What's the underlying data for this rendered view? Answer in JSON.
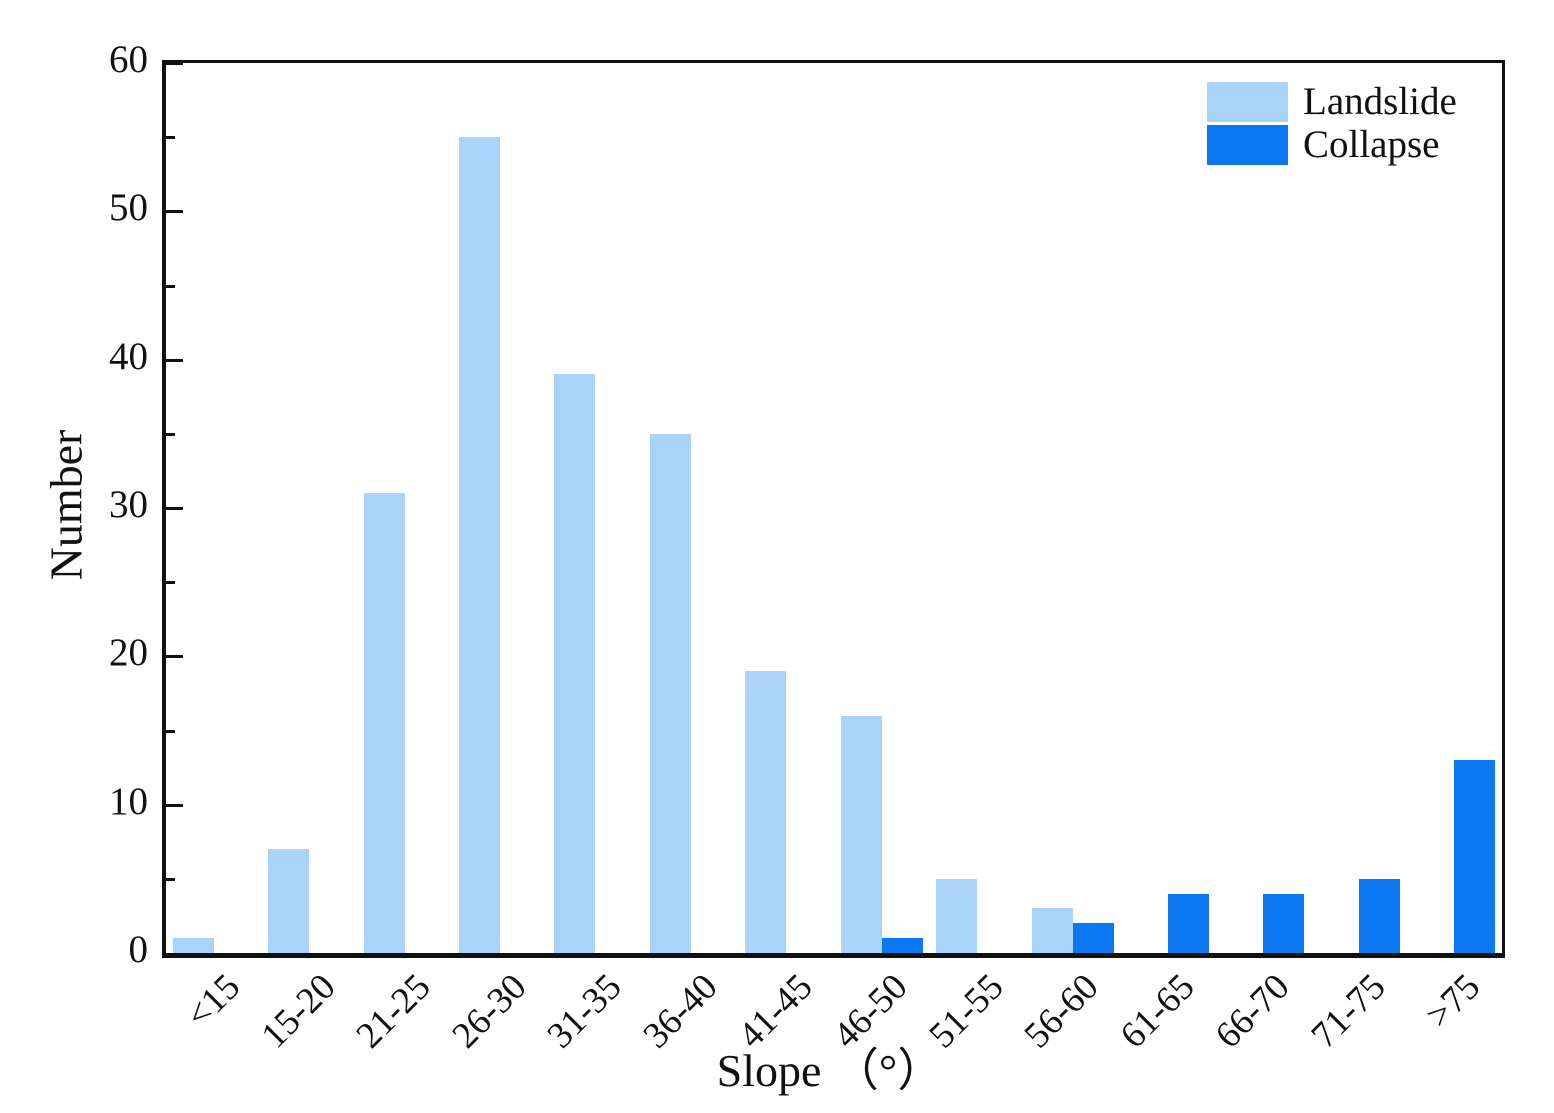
{
  "chart_data": {
    "type": "bar",
    "title": "",
    "xlabel": "Slope （°）",
    "ylabel": "Number",
    "categories": [
      "<15",
      "15-20",
      "21-25",
      "26-30",
      "31-35",
      "36-40",
      "41-45",
      "46-50",
      "51-55",
      "56-60",
      "61-65",
      "66-70",
      "71-75",
      ">75"
    ],
    "series": [
      {
        "name": "Landslide",
        "color": "#a9d3f9",
        "values": [
          1,
          7,
          31,
          55,
          39,
          35,
          19,
          16,
          5,
          3,
          0,
          0,
          0,
          0
        ]
      },
      {
        "name": "Collapse",
        "color": "#0b77f0",
        "values": [
          0,
          0,
          0,
          0,
          0,
          0,
          0,
          1,
          0,
          2,
          4,
          4,
          5,
          13
        ]
      }
    ],
    "ylim": [
      0,
      60
    ],
    "y_major_ticks": [
      0,
      10,
      20,
      30,
      40,
      50,
      60
    ],
    "y_minor_step": 5,
    "grid": false,
    "legend_position": "top-right",
    "axis_color": "#111111"
  }
}
